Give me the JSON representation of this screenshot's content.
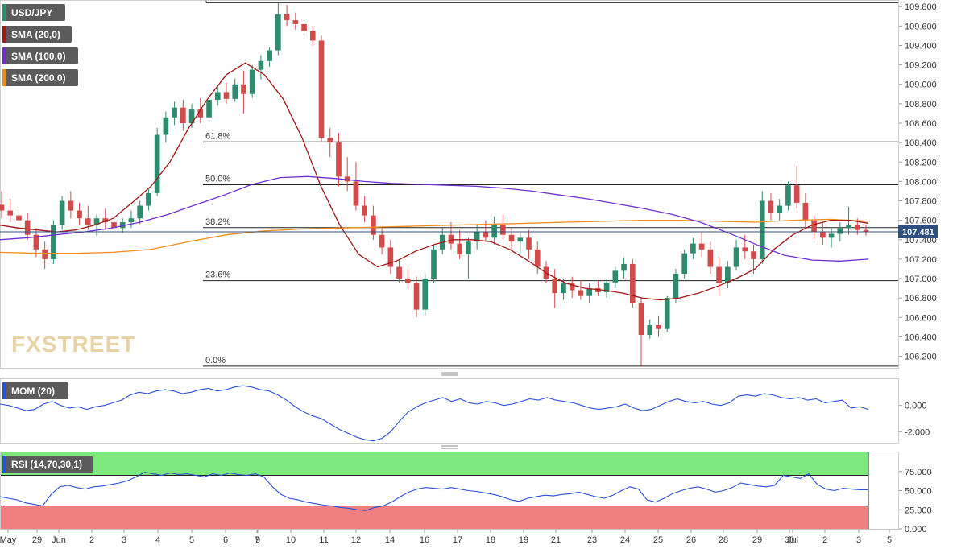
{
  "chart_data": [
    {
      "type": "candlestick",
      "symbol": "USD/JPY",
      "watermark": "FXSTREET",
      "y_axis_ticks": [
        "109.800",
        "109.600",
        "109.400",
        "109.200",
        "109.000",
        "108.800",
        "108.600",
        "108.400",
        "108.200",
        "108.000",
        "107.800",
        "107.600",
        "107.400",
        "107.200",
        "107.000",
        "106.800",
        "106.600",
        "106.400",
        "106.200"
      ],
      "ylim": [
        106.08,
        109.86
      ],
      "last_price": "107.481",
      "x_tick_labels": [
        "May",
        "29",
        "Jun",
        "2",
        "3",
        "4",
        "5",
        "6",
        "7",
        "9",
        "10",
        "11",
        "12",
        "14",
        "16",
        "17",
        "18",
        "19",
        "21",
        "23",
        "24",
        "25",
        "26",
        "28",
        "29",
        "30",
        "Jul",
        "2",
        "3",
        "5"
      ],
      "indicators": [
        {
          "name": "SMA (20,0)",
          "color": "#a01818"
        },
        {
          "name": "SMA (100,0)",
          "color": "#7030d0"
        },
        {
          "name": "SMA (200,0)",
          "color": "#f08c1a"
        }
      ],
      "fibonacci": [
        {
          "label": "61.8%",
          "price": 108.407
        },
        {
          "label": "50.0%",
          "price": 107.966
        },
        {
          "label": "38.2%",
          "price": 107.524
        },
        {
          "label": "23.6%",
          "price": 106.978
        },
        {
          "label": "0.0%",
          "price": 106.098
        }
      ],
      "top_line_price": 109.84,
      "last_price_line": 107.481,
      "colors": {
        "up": "#2e8b6e",
        "down": "#d24b4b",
        "price_tag": "#2f4f7f"
      },
      "candles_source": "approximate",
      "candles_ohlc": [
        [
          107.76,
          107.9,
          107.62,
          107.7
        ],
        [
          107.7,
          107.82,
          107.58,
          107.65
        ],
        [
          107.65,
          107.74,
          107.52,
          107.6
        ],
        [
          107.6,
          107.68,
          107.4,
          107.45
        ],
        [
          107.45,
          107.52,
          107.22,
          107.3
        ],
        [
          107.3,
          107.38,
          107.1,
          107.2
        ],
        [
          107.2,
          107.6,
          107.15,
          107.55
        ],
        [
          107.55,
          107.85,
          107.5,
          107.8
        ],
        [
          107.8,
          107.9,
          107.62,
          107.7
        ],
        [
          107.7,
          107.78,
          107.55,
          107.62
        ],
        [
          107.62,
          107.75,
          107.5,
          107.55
        ],
        [
          107.55,
          107.66,
          107.44,
          107.62
        ],
        [
          107.62,
          107.72,
          107.5,
          107.58
        ],
        [
          107.58,
          107.64,
          107.48,
          107.52
        ],
        [
          107.52,
          107.62,
          107.47,
          107.58
        ],
        [
          107.58,
          107.7,
          107.52,
          107.62
        ],
        [
          107.62,
          107.8,
          107.56,
          107.75
        ],
        [
          107.75,
          107.92,
          107.7,
          107.88
        ],
        [
          107.88,
          108.55,
          107.85,
          108.48
        ],
        [
          108.48,
          108.72,
          108.4,
          108.66
        ],
        [
          108.66,
          108.82,
          108.58,
          108.76
        ],
        [
          108.76,
          108.84,
          108.52,
          108.6
        ],
        [
          108.6,
          108.8,
          108.55,
          108.74
        ],
        [
          108.74,
          108.86,
          108.6,
          108.66
        ],
        [
          108.66,
          108.88,
          108.62,
          108.84
        ],
        [
          108.84,
          108.98,
          108.78,
          108.92
        ],
        [
          108.92,
          109.02,
          108.8,
          108.85
        ],
        [
          108.85,
          109.06,
          108.82,
          109.0
        ],
        [
          109.0,
          109.14,
          108.7,
          108.9
        ],
        [
          108.9,
          109.2,
          108.86,
          109.15
        ],
        [
          109.15,
          109.3,
          109.05,
          109.24
        ],
        [
          109.24,
          109.38,
          109.18,
          109.35
        ],
        [
          109.35,
          109.84,
          109.3,
          109.72
        ],
        [
          109.72,
          109.82,
          109.6,
          109.66
        ],
        [
          109.66,
          109.74,
          109.56,
          109.62
        ],
        [
          109.62,
          109.66,
          109.5,
          109.55
        ],
        [
          109.55,
          109.6,
          109.4,
          109.45
        ],
        [
          109.45,
          109.5,
          108.4,
          108.45
        ],
        [
          108.45,
          108.55,
          108.25,
          108.4
        ],
        [
          108.4,
          108.5,
          107.95,
          108.05
        ],
        [
          108.05,
          108.25,
          107.9,
          108.0
        ],
        [
          108.0,
          108.2,
          107.7,
          107.75
        ],
        [
          107.75,
          107.85,
          107.58,
          107.65
        ],
        [
          107.65,
          107.75,
          107.4,
          107.45
        ],
        [
          107.45,
          107.52,
          107.25,
          107.32
        ],
        [
          107.32,
          107.4,
          107.05,
          107.12
        ],
        [
          107.12,
          107.2,
          106.95,
          107.0
        ],
        [
          107.0,
          107.1,
          106.9,
          106.95
        ],
        [
          106.95,
          107.02,
          106.6,
          106.68
        ],
        [
          106.68,
          107.05,
          106.62,
          107.0
        ],
        [
          107.0,
          107.35,
          106.95,
          107.3
        ],
        [
          107.3,
          107.52,
          107.25,
          107.45
        ],
        [
          107.45,
          107.58,
          107.3,
          107.36
        ],
        [
          107.36,
          107.5,
          107.2,
          107.25
        ],
        [
          107.25,
          107.42,
          107.0,
          107.38
        ],
        [
          107.38,
          107.55,
          107.3,
          107.48
        ],
        [
          107.48,
          107.6,
          107.38,
          107.42
        ],
        [
          107.42,
          107.64,
          107.35,
          107.55
        ],
        [
          107.55,
          107.66,
          107.4,
          107.45
        ],
        [
          107.45,
          107.52,
          107.3,
          107.38
        ],
        [
          107.38,
          107.48,
          107.25,
          107.42
        ],
        [
          107.42,
          107.5,
          107.2,
          107.3
        ],
        [
          107.3,
          107.38,
          107.05,
          107.12
        ],
        [
          107.12,
          107.18,
          106.95,
          107.0
        ],
        [
          107.0,
          107.1,
          106.7,
          106.85
        ],
        [
          106.85,
          107.0,
          106.78,
          106.95
        ],
        [
          106.95,
          107.02,
          106.8,
          106.88
        ],
        [
          106.88,
          106.98,
          106.78,
          106.82
        ],
        [
          106.82,
          106.95,
          106.75,
          106.9
        ],
        [
          106.9,
          106.98,
          106.82,
          106.86
        ],
        [
          106.86,
          107.0,
          106.8,
          106.96
        ],
        [
          106.96,
          107.12,
          106.9,
          107.08
        ],
        [
          107.08,
          107.22,
          107.0,
          107.15
        ],
        [
          107.15,
          107.2,
          106.7,
          106.75
        ],
        [
          106.75,
          106.8,
          106.1,
          106.42
        ],
        [
          106.42,
          106.58,
          106.38,
          106.52
        ],
        [
          106.52,
          106.62,
          106.4,
          106.48
        ],
        [
          106.48,
          106.82,
          106.45,
          106.8
        ],
        [
          106.8,
          107.1,
          106.75,
          107.05
        ],
        [
          107.05,
          107.3,
          107.0,
          107.26
        ],
        [
          107.26,
          107.42,
          107.2,
          107.36
        ],
        [
          107.36,
          107.48,
          107.22,
          107.3
        ],
        [
          107.3,
          107.38,
          107.05,
          107.12
        ],
        [
          107.12,
          107.22,
          106.82,
          106.95
        ],
        [
          106.95,
          107.18,
          106.9,
          107.12
        ],
        [
          107.12,
          107.4,
          107.08,
          107.32
        ],
        [
          107.32,
          107.45,
          107.2,
          107.28
        ],
        [
          107.28,
          107.35,
          107.05,
          107.2
        ],
        [
          107.2,
          107.9,
          107.15,
          107.8
        ],
        [
          107.8,
          107.88,
          107.6,
          107.68
        ],
        [
          107.68,
          107.82,
          107.6,
          107.75
        ],
        [
          107.75,
          108.0,
          107.7,
          107.96
        ],
        [
          107.96,
          108.16,
          107.72,
          107.78
        ],
        [
          107.78,
          107.88,
          107.52,
          107.6
        ],
        [
          107.6,
          107.65,
          107.4,
          107.48
        ],
        [
          107.48,
          107.58,
          107.35,
          107.42
        ],
        [
          107.42,
          107.52,
          107.32,
          107.46
        ],
        [
          107.46,
          107.58,
          107.38,
          107.52
        ],
        [
          107.52,
          107.74,
          107.45,
          107.55
        ],
        [
          107.55,
          107.62,
          107.45,
          107.5
        ],
        [
          107.5,
          107.55,
          107.44,
          107.48
        ]
      ],
      "sma20_values": [
        107.55,
        107.52,
        107.5,
        107.48,
        107.5,
        107.55,
        107.62,
        107.78,
        107.95,
        108.2,
        108.55,
        108.85,
        109.1,
        109.22,
        109.1,
        108.85,
        108.45,
        107.95,
        107.55,
        107.25,
        107.12,
        107.18,
        107.28,
        107.35,
        107.4,
        107.4,
        107.38,
        107.3,
        107.18,
        107.05,
        106.95,
        106.9,
        106.88,
        106.85,
        106.8,
        106.78,
        106.8,
        106.85,
        106.92,
        107.0,
        107.1,
        107.3,
        107.45,
        107.55,
        107.6,
        107.6,
        107.57
      ],
      "sma100_values": [
        107.4,
        107.42,
        107.45,
        107.48,
        107.52,
        107.58,
        107.66,
        107.76,
        107.86,
        107.97,
        108.04,
        108.05,
        108.03,
        108.0,
        107.98,
        107.97,
        107.96,
        107.95,
        107.93,
        107.9,
        107.86,
        107.82,
        107.77,
        107.72,
        107.66,
        107.58,
        107.47,
        107.35,
        107.24,
        107.19,
        107.18,
        107.2
      ],
      "sma200_values": [
        107.27,
        107.26,
        107.26,
        107.27,
        107.3,
        107.38,
        107.45,
        107.49,
        107.51,
        107.52,
        107.53,
        107.54,
        107.55,
        107.56,
        107.57,
        107.58,
        107.59,
        107.6,
        107.6,
        107.59,
        107.58,
        107.6,
        107.61,
        107.59
      ]
    },
    {
      "type": "line",
      "indicator": "MOM (20)",
      "y_axis_ticks": [
        "0.000",
        "-2.000"
      ],
      "ylim": [
        -2.9,
        2.0
      ],
      "line_color": "#2b4fd6",
      "values_source": "approximate",
      "values": [
        0.1,
        0.0,
        -0.2,
        -0.4,
        -0.3,
        0.1,
        0.3,
        0.0,
        -0.2,
        -0.1,
        -0.3,
        -0.1,
        0.0,
        0.2,
        0.4,
        0.8,
        1.0,
        0.9,
        1.1,
        1.2,
        1.1,
        0.9,
        1.0,
        1.2,
        1.3,
        1.1,
        1.2,
        1.4,
        1.5,
        1.4,
        1.2,
        1.1,
        0.8,
        0.4,
        -0.1,
        -0.5,
        -0.8,
        -1.0,
        -1.4,
        -1.8,
        -2.1,
        -2.4,
        -2.6,
        -2.7,
        -2.5,
        -2.0,
        -1.2,
        -0.5,
        -0.1,
        0.2,
        0.4,
        0.6,
        0.3,
        0.5,
        0.2,
        0.1,
        0.3,
        0.2,
        0.0,
        0.1,
        0.3,
        0.5,
        0.4,
        0.6,
        0.4,
        0.3,
        0.2,
        0.0,
        -0.2,
        -0.3,
        -0.2,
        -0.1,
        0.1,
        -0.2,
        -0.4,
        -0.3,
        0.0,
        0.3,
        0.5,
        0.3,
        0.2,
        0.3,
        0.1,
        0.0,
        0.2,
        0.7,
        0.8,
        0.7,
        0.9,
        0.8,
        0.6,
        0.5,
        0.6,
        0.4,
        0.5,
        0.2,
        0.3,
        0.4,
        -0.2,
        -0.1,
        -0.3
      ]
    },
    {
      "type": "line",
      "indicator": "RSI (14,70,30,1)",
      "y_axis_ticks": [
        "75.000",
        "50.000",
        "25.000",
        "0.000"
      ],
      "ylim": [
        0,
        100
      ],
      "overbought": 70,
      "oversold": 30,
      "zone_colors": {
        "overbought": "#7de87d",
        "oversold": "#f08080"
      },
      "line_color": "#2b4fd6",
      "values_source": "approximate",
      "values": [
        42,
        40,
        38,
        34,
        32,
        30,
        45,
        55,
        57,
        54,
        52,
        55,
        56,
        58,
        60,
        63,
        68,
        74,
        72,
        70,
        73,
        71,
        72,
        70,
        68,
        72,
        70,
        73,
        71,
        70,
        72,
        68,
        55,
        45,
        40,
        38,
        35,
        33,
        31,
        30,
        28,
        27,
        25,
        24,
        28,
        30,
        35,
        42,
        48,
        52,
        54,
        53,
        52,
        54,
        52,
        50,
        49,
        47,
        45,
        42,
        38,
        36,
        40,
        42,
        44,
        43,
        45,
        46,
        48,
        45,
        42,
        40,
        44,
        50,
        55,
        52,
        38,
        35,
        40,
        46,
        50,
        53,
        55,
        52,
        48,
        50,
        54,
        60,
        58,
        56,
        55,
        57,
        70,
        68,
        66,
        72,
        58,
        52,
        50,
        53,
        52,
        51,
        51
      ]
    }
  ]
}
